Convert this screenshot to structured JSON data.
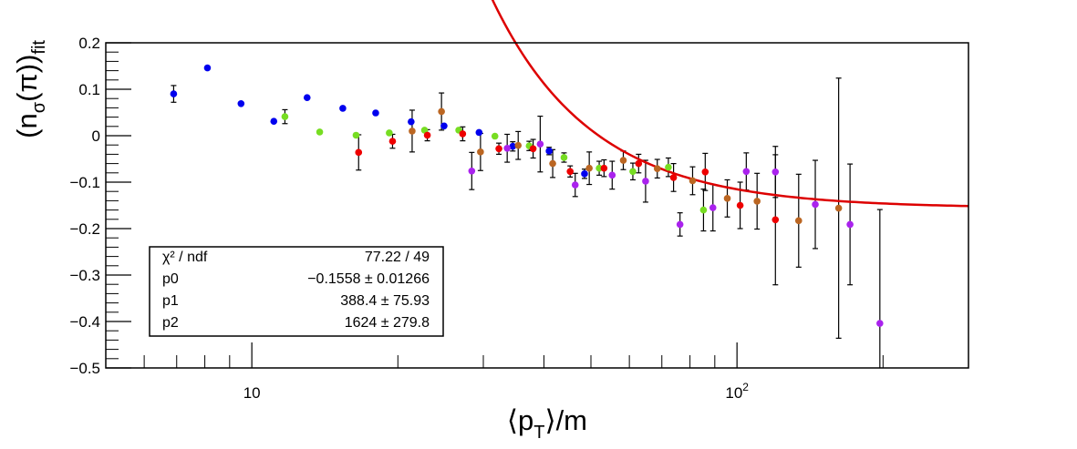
{
  "chart_data": {
    "type": "scatter",
    "title": "",
    "x_scale": "log",
    "xlim": [
      5,
      300
    ],
    "ylim": [
      -0.5,
      0.2
    ],
    "grid": false,
    "xlabel_parts": {
      "open": "⟨p",
      "sub": "T",
      "close": "⟩/m"
    },
    "ylabel_parts": {
      "open": "(n",
      "sub1": "σ",
      "mid": "(π))",
      "sub2": "fit"
    },
    "x_ticks": [
      {
        "value": 10,
        "base": "10",
        "exp": ""
      },
      {
        "value": 100,
        "base": "10",
        "exp": "2"
      }
    ],
    "y_ticks": [
      {
        "value": 0.2,
        "label": "0.2"
      },
      {
        "value": 0.1,
        "label": "0.1"
      },
      {
        "value": 0,
        "label": "0"
      },
      {
        "value": -0.1,
        "label": "−0.1"
      },
      {
        "value": -0.2,
        "label": "−0.2"
      },
      {
        "value": -0.3,
        "label": "−0.3"
      },
      {
        "value": -0.4,
        "label": "−0.4"
      },
      {
        "value": -0.5,
        "label": "−0.5"
      }
    ],
    "fit_params": {
      "p0": -0.1558,
      "p1": 388.4,
      "p2": 1624
    },
    "fit_range": [
      20,
      300
    ],
    "fit_color": "#dd0000",
    "stats_box": {
      "position": "bottom-left",
      "rows": [
        {
          "name": "χ² / ndf",
          "value": "77.22 / 49"
        },
        {
          "name": "p0",
          "value": "−0.1558 ± 0.01266"
        },
        {
          "name": "p1",
          "value": "388.4 ± 75.93"
        },
        {
          "name": "p2",
          "value": "1624 ± 279.8"
        }
      ]
    },
    "series": [
      {
        "color": "#0000ee",
        "points": [
          {
            "x": 6.9,
            "y": 0.09,
            "err": 0.018
          },
          {
            "x": 8.1,
            "y": 0.146,
            "err": 0
          },
          {
            "x": 9.5,
            "y": 0.069,
            "err": 0
          },
          {
            "x": 11.1,
            "y": 0.031,
            "err": 0
          },
          {
            "x": 13.0,
            "y": 0.082,
            "err": 0
          },
          {
            "x": 15.4,
            "y": 0.059,
            "err": 0
          },
          {
            "x": 18.0,
            "y": 0.049,
            "err": 0
          },
          {
            "x": 21.3,
            "y": 0.03,
            "err": 0
          },
          {
            "x": 24.9,
            "y": 0.021,
            "err": 0
          },
          {
            "x": 29.4,
            "y": 0.007,
            "err": 0
          },
          {
            "x": 34.5,
            "y": -0.023,
            "err": 0.01
          },
          {
            "x": 41.0,
            "y": -0.033,
            "err": 0.008
          },
          {
            "x": 48.5,
            "y": -0.082,
            "err": 0.01
          }
        ]
      },
      {
        "color": "#77dd22",
        "points": [
          {
            "x": 11.7,
            "y": 0.041,
            "err": 0.015
          },
          {
            "x": 13.8,
            "y": 0.008,
            "err": 0
          },
          {
            "x": 16.4,
            "y": 0.001,
            "err": 0
          },
          {
            "x": 19.2,
            "y": 0.006,
            "err": 0
          },
          {
            "x": 22.7,
            "y": 0.012,
            "err": 0
          },
          {
            "x": 26.7,
            "y": 0.012,
            "err": 0
          },
          {
            "x": 31.7,
            "y": -0.001,
            "err": 0
          },
          {
            "x": 37.3,
            "y": -0.022,
            "err": 0.01
          },
          {
            "x": 44.0,
            "y": -0.047,
            "err": 0.01
          },
          {
            "x": 52.0,
            "y": -0.07,
            "err": 0.015
          },
          {
            "x": 61.0,
            "y": -0.077,
            "err": 0.018
          },
          {
            "x": 72.2,
            "y": -0.068,
            "err": 0.02
          },
          {
            "x": 85.3,
            "y": -0.16,
            "err": 0.045
          }
        ]
      },
      {
        "color": "#ee0000",
        "points": [
          {
            "x": 16.6,
            "y": -0.036,
            "err": 0.038
          },
          {
            "x": 19.5,
            "y": -0.012,
            "err": 0.015
          },
          {
            "x": 23.0,
            "y": 0.001,
            "err": 0.012
          },
          {
            "x": 27.2,
            "y": 0.004,
            "err": 0.015
          },
          {
            "x": 32.3,
            "y": -0.028,
            "err": 0.012
          },
          {
            "x": 38.0,
            "y": -0.028,
            "err": 0.02
          },
          {
            "x": 45.3,
            "y": -0.077,
            "err": 0.012
          },
          {
            "x": 53.2,
            "y": -0.07,
            "err": 0.018
          },
          {
            "x": 62.7,
            "y": -0.06,
            "err": 0.02
          },
          {
            "x": 74.0,
            "y": -0.09,
            "err": 0.03
          },
          {
            "x": 86.0,
            "y": -0.078,
            "err": 0.04
          },
          {
            "x": 101.5,
            "y": -0.15,
            "err": 0.05
          },
          {
            "x": 120.0,
            "y": -0.181,
            "err": 0.14
          }
        ]
      },
      {
        "color": "#bb6622",
        "points": [
          {
            "x": 21.4,
            "y": 0.01,
            "err": 0.045
          },
          {
            "x": 24.6,
            "y": 0.052,
            "err": 0.04
          },
          {
            "x": 29.6,
            "y": -0.035,
            "err": 0.04
          },
          {
            "x": 35.4,
            "y": -0.021,
            "err": 0.03
          },
          {
            "x": 41.7,
            "y": -0.06,
            "err": 0.03
          },
          {
            "x": 49.6,
            "y": -0.07,
            "err": 0.035
          },
          {
            "x": 58.3,
            "y": -0.053,
            "err": 0.02
          },
          {
            "x": 68.5,
            "y": -0.071,
            "err": 0.02
          },
          {
            "x": 81.0,
            "y": -0.097,
            "err": 0.03
          },
          {
            "x": 95.5,
            "y": -0.135,
            "err": 0.04
          },
          {
            "x": 110.0,
            "y": -0.141,
            "err": 0.06
          },
          {
            "x": 134.0,
            "y": -0.183,
            "err": 0.1
          },
          {
            "x": 162.0,
            "y": -0.156,
            "err": 0.28
          }
        ]
      },
      {
        "color": "#aa22ee",
        "points": [
          {
            "x": 28.4,
            "y": -0.076,
            "err": 0.04
          },
          {
            "x": 33.6,
            "y": -0.027,
            "err": 0.03
          },
          {
            "x": 39.3,
            "y": -0.018,
            "err": 0.06
          },
          {
            "x": 46.4,
            "y": -0.106,
            "err": 0.025
          },
          {
            "x": 55.3,
            "y": -0.085,
            "err": 0.03
          },
          {
            "x": 64.8,
            "y": -0.098,
            "err": 0.045
          },
          {
            "x": 76.3,
            "y": -0.191,
            "err": 0.025
          },
          {
            "x": 89.2,
            "y": -0.155,
            "err": 0.05
          },
          {
            "x": 104.5,
            "y": -0.077,
            "err": 0.04
          },
          {
            "x": 120.0,
            "y": -0.078,
            "err": 0.055
          },
          {
            "x": 145.0,
            "y": -0.148,
            "err": 0.095
          },
          {
            "x": 171.0,
            "y": -0.191,
            "err": 0.13
          },
          {
            "x": 197.0,
            "y": -0.404,
            "err": 0.245
          }
        ]
      }
    ]
  }
}
